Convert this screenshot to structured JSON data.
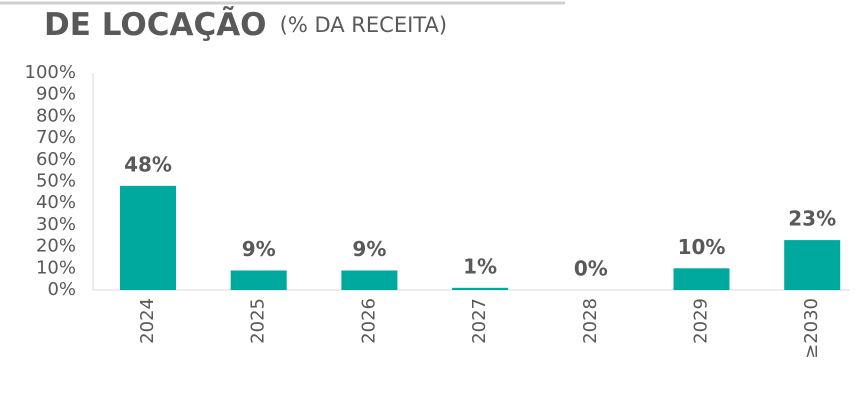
{
  "chart_data": {
    "type": "bar",
    "title": "DE LOCAÇÃO",
    "subtitle": "(% DA RECEITA)",
    "categories": [
      "2024",
      "2025",
      "2026",
      "2027",
      "2028",
      "2029",
      "≥2030"
    ],
    "values": [
      48,
      9,
      9,
      1,
      0,
      10,
      23
    ],
    "value_labels": [
      "48%",
      "9%",
      "9%",
      "1%",
      "0%",
      "10%",
      "23%"
    ],
    "color": "#00a99d",
    "ylim": [
      0,
      100
    ],
    "yticks": [
      {
        "value": 0,
        "label": "0%"
      },
      {
        "value": 10,
        "label": "10%"
      },
      {
        "value": 20,
        "label": "20%"
      },
      {
        "value": 30,
        "label": "30%"
      },
      {
        "value": 40,
        "label": "40%"
      },
      {
        "value": 50,
        "label": "50%"
      },
      {
        "value": 60,
        "label": "60%"
      },
      {
        "value": 70,
        "label": "70%"
      },
      {
        "value": 80,
        "label": "80%"
      },
      {
        "value": 90,
        "label": "90%"
      },
      {
        "value": 100,
        "label": "100%"
      }
    ]
  }
}
